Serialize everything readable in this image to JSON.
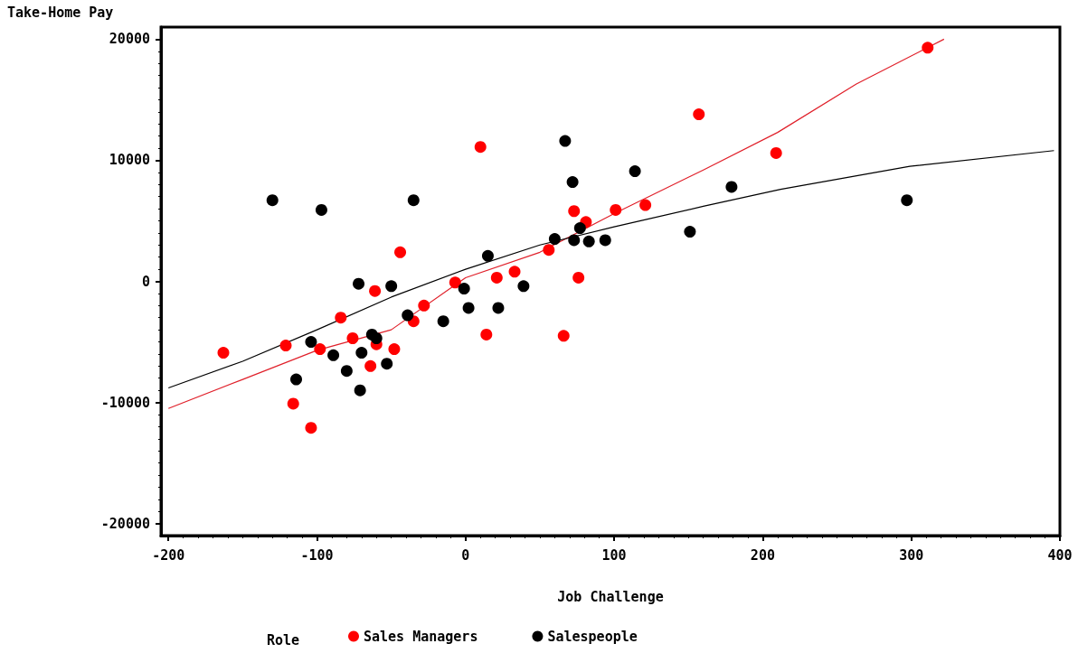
{
  "chart_data": {
    "type": "scatter",
    "xlabel": "Job Challenge",
    "ylabel": "Take-Home Pay",
    "legend_title": "Role",
    "xlim": [
      -205,
      400
    ],
    "xticks": [
      -200,
      -100,
      0,
      100,
      200,
      300,
      400
    ],
    "ylim": [
      -21000,
      21000
    ],
    "yticks": [
      -20000,
      -10000,
      0,
      10000,
      20000
    ],
    "grid": false,
    "legend": "bottom",
    "marker": "circle",
    "series": [
      {
        "name": "Sales Managers",
        "color": "#ff0000",
        "x": [
          -163,
          -121,
          -116,
          -104,
          -98,
          -84,
          -76,
          -64,
          -61,
          -60,
          -48,
          -44,
          -35,
          -28,
          -7,
          10,
          14,
          21,
          33,
          56,
          66,
          73,
          76,
          81,
          101,
          121,
          157,
          209,
          311
        ],
        "values": [
          -5900,
          -5300,
          -10100,
          -12100,
          -5600,
          -3000,
          -4700,
          -7000,
          -800,
          -5200,
          -5600,
          2400,
          -3300,
          -2000,
          -100,
          11100,
          -4400,
          300,
          800,
          2600,
          -4500,
          5800,
          300,
          4900,
          5900,
          6300,
          13800,
          10600,
          19300
        ]
      },
      {
        "name": "Salespeople",
        "color": "#000000",
        "x": [
          -130,
          -114,
          -104,
          -97,
          -89,
          -80,
          -72,
          -71,
          -70,
          -63,
          -60,
          -53,
          -50,
          -39,
          -35,
          -15,
          -1,
          2,
          15,
          22,
          39,
          60,
          67,
          72,
          73,
          77,
          83,
          94,
          114,
          151,
          179,
          297
        ],
        "values": [
          6700,
          -8100,
          -5000,
          5900,
          -6100,
          -7400,
          -200,
          -9000,
          -5900,
          -4400,
          -4700,
          -6800,
          -400,
          -2800,
          6700,
          -3300,
          -600,
          -2200,
          2100,
          -2200,
          -400,
          3500,
          11600,
          8200,
          3400,
          4400,
          3300,
          3400,
          9100,
          4100,
          7800,
          6700
        ]
      },
      {
        "type": "line",
        "marker": "none",
        "color": "#e0202a",
        "x": [
          -200,
          -150,
          -100,
          -50,
          0,
          50,
          100,
          160,
          210,
          263,
          322
        ],
        "values": [
          -10500,
          -8100,
          -5700,
          -4000,
          300,
          2400,
          5600,
          9200,
          12300,
          16300,
          20000
        ]
      },
      {
        "type": "line",
        "marker": "none",
        "color": "#000000",
        "x": [
          -200,
          -150,
          -100,
          -50,
          0,
          50,
          100,
          160,
          212,
          299,
          396
        ],
        "values": [
          -8800,
          -6600,
          -4000,
          -1300,
          1000,
          3000,
          4500,
          6200,
          7600,
          9500,
          10800
        ]
      }
    ]
  }
}
